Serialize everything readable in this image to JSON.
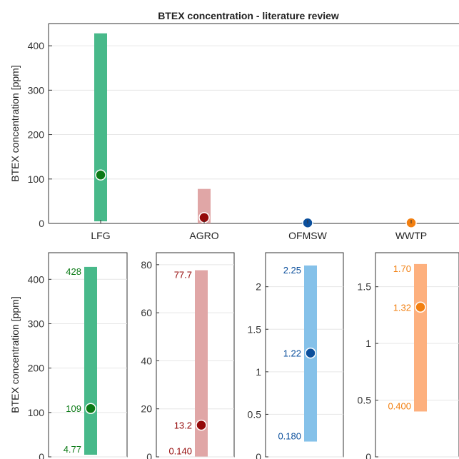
{
  "chart_data": [
    {
      "type": "range",
      "title": "BTEX concentration - literature review",
      "xlabel": "",
      "ylabel": "BTEX concentration [ppm]",
      "ylim": [
        0,
        450
      ],
      "yticks": [
        "0",
        "100",
        "200",
        "300",
        "400"
      ],
      "grid": true,
      "categories": [
        "LFG",
        "AGRO",
        "OFMSW",
        "WWTP"
      ],
      "min": [
        4.77,
        0.14,
        0.18,
        0.4
      ],
      "max": [
        428,
        77.7,
        2.25,
        1.7
      ],
      "mean": [
        109,
        13.2,
        1.22,
        1.32
      ],
      "bar_colors": [
        "#48b98a",
        "#e0a6a6",
        "#85c1e9",
        "#fdb07e"
      ],
      "marker_colors": [
        "#0b7a16",
        "#950a0a",
        "#0b4f9c",
        "#f27f10"
      ]
    },
    {
      "type": "range",
      "category": "LFG",
      "ylabel": "BTEX concentration [ppm]",
      "ylim": [
        0,
        460
      ],
      "yticks": [
        "0",
        "100",
        "200",
        "300",
        "400"
      ],
      "min": 4.77,
      "max": 428,
      "mean": 109,
      "labels": {
        "max": "428",
        "mean": "109",
        "min": "4.77"
      },
      "bar_color": "#48b98a",
      "marker_color": "#0b7a16"
    },
    {
      "type": "range",
      "category": "AGRO",
      "ylim": [
        0,
        85
      ],
      "yticks": [
        "0",
        "20",
        "40",
        "60",
        "80"
      ],
      "min": 0.14,
      "max": 77.7,
      "mean": 13.2,
      "labels": {
        "max": "77.7",
        "mean": "13.2",
        "min": "0.140"
      },
      "bar_color": "#e0a6a6",
      "marker_color": "#950a0a"
    },
    {
      "type": "range",
      "category": "OFMSW",
      "ylim": [
        0,
        2.4
      ],
      "yticks": [
        "0",
        "0.5",
        "1",
        "1.5",
        "2"
      ],
      "min": 0.18,
      "max": 2.25,
      "mean": 1.22,
      "labels": {
        "max": "2.25",
        "mean": "1.22",
        "min": "0.180"
      },
      "bar_color": "#85c1e9",
      "marker_color": "#0b4f9c"
    },
    {
      "type": "range",
      "category": "WWTP",
      "ylim": [
        0,
        1.8
      ],
      "yticks": [
        "0",
        "0.5",
        "1",
        "1.5"
      ],
      "min": 0.4,
      "max": 1.7,
      "mean": 1.32,
      "labels": {
        "max": "1.70",
        "mean": "1.32",
        "min": "0.400"
      },
      "bar_color": "#fdb07e",
      "marker_color": "#f27f10"
    }
  ]
}
